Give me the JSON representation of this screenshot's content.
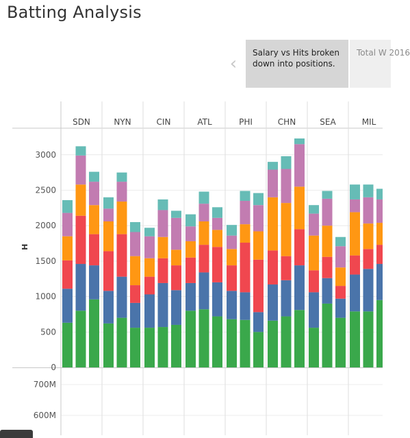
{
  "page": {
    "title": "Batting Analysis"
  },
  "story": {
    "prev_icon": "chevron-left-icon",
    "points": [
      {
        "label": "Salary vs Hits broken down into positions."
      },
      {
        "label": "Total W 2016"
      }
    ]
  },
  "colors": {
    "positions": [
      "#3aa84b",
      "#4a74aa",
      "#f0474f",
      "#ff9713",
      "#c27cb1",
      "#66bcb6"
    ],
    "grid": "#dcdcdc"
  },
  "chart_data": [
    {
      "type": "bar",
      "stacked": true,
      "ylabel": "H",
      "ylim": [
        0,
        3300
      ],
      "yticks": [
        0,
        500,
        1000,
        1500,
        2000,
        2500,
        3000
      ],
      "grid": true,
      "teams": [
        "SDN",
        "NYN",
        "CIN",
        "ATL",
        "PHI",
        "CHN",
        "SEA",
        "MIL"
      ],
      "bars_per_team": 3,
      "segments": [
        [
          630,
          480,
          400,
          340,
          330,
          180
        ],
        [
          800,
          660,
          680,
          440,
          410,
          130
        ],
        [
          960,
          480,
          440,
          410,
          330,
          140
        ],
        [
          620,
          460,
          560,
          420,
          180,
          160
        ],
        [
          700,
          580,
          600,
          460,
          280,
          130
        ],
        [
          560,
          350,
          250,
          410,
          340,
          140
        ],
        [
          560,
          470,
          250,
          260,
          310,
          120
        ],
        [
          570,
          620,
          350,
          300,
          380,
          150
        ],
        [
          600,
          490,
          350,
          220,
          450,
          100
        ],
        [
          800,
          390,
          360,
          230,
          210,
          170
        ],
        [
          820,
          520,
          390,
          330,
          250,
          170
        ],
        [
          720,
          480,
          500,
          240,
          170,
          150
        ],
        [
          680,
          400,
          360,
          230,
          190,
          150
        ],
        [
          670,
          390,
          700,
          260,
          330,
          140
        ],
        [
          500,
          280,
          740,
          400,
          370,
          170
        ],
        [
          660,
          510,
          480,
          750,
          390,
          110
        ],
        [
          720,
          510,
          340,
          750,
          480,
          180
        ],
        [
          810,
          630,
          510,
          600,
          600,
          80
        ],
        [
          560,
          500,
          310,
          490,
          310,
          120
        ],
        [
          900,
          360,
          300,
          440,
          380,
          110
        ],
        [
          700,
          270,
          180,
          260,
          300,
          130
        ],
        [
          790,
          520,
          270,
          610,
          180,
          210
        ],
        [
          790,
          600,
          280,
          360,
          370,
          180
        ],
        [
          950,
          510,
          270,
          310,
          330,
          150
        ]
      ]
    },
    {
      "type": "bar",
      "ylabel": "",
      "ytick_labels": [
        "700M",
        "600M"
      ],
      "grid": true
    }
  ]
}
